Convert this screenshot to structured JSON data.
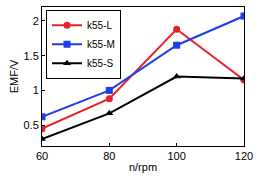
{
  "chart_data": {
    "type": "line",
    "x_label": "n/rpm",
    "y_label": "EMF/V",
    "x": [
      60,
      80,
      100,
      120
    ],
    "series": [
      {
        "name": "k55-L",
        "color": "#e8202a",
        "marker": "circle",
        "values": [
          0.45,
          0.88,
          1.88,
          1.15
        ]
      },
      {
        "name": "k55-M",
        "color": "#1f3fe8",
        "marker": "square",
        "values": [
          0.62,
          1.0,
          1.65,
          2.07
        ]
      },
      {
        "name": "k55-S",
        "color": "#000000",
        "marker": "triangle-up",
        "values": [
          0.3,
          0.67,
          1.2,
          1.17
        ]
      }
    ],
    "xlim": [
      60,
      120
    ],
    "xticks": [
      60,
      80,
      100,
      120
    ],
    "ylim": [
      0.2,
      2.2
    ],
    "yticks": [
      0.5,
      1,
      1.5,
      2
    ],
    "grid": false,
    "legend": "top-left"
  }
}
